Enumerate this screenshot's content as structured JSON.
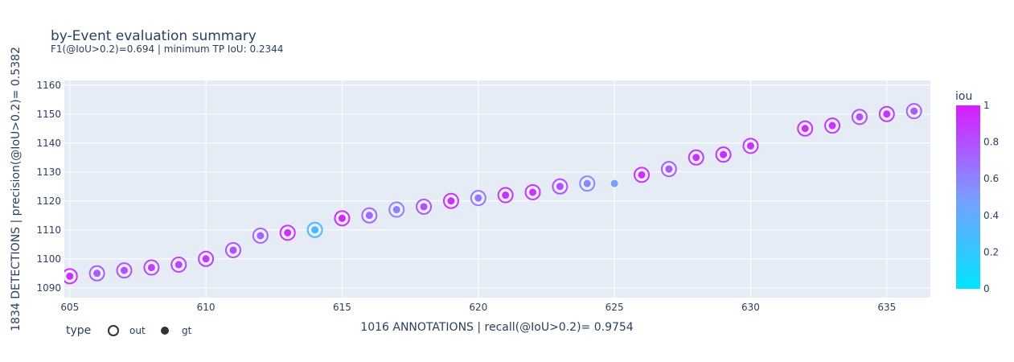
{
  "chart_data": {
    "type": "scatter",
    "title": "by-Event evaluation summary",
    "subtitle": "F1(@IoU>0.2)=0.694 | minimum TP IoU: 0.2344",
    "xlabel": "1016 ANNOTATIONS | recall(@IoU>0.2)= 0.9754",
    "ylabel": "1834 DETECTIONS | precision(@IoU>0.2)= 0.5382",
    "xlim": [
      604.8,
      636.6
    ],
    "ylim": [
      1086.6,
      1161.6
    ],
    "x_ticks": [
      605,
      610,
      615,
      620,
      625,
      630,
      635
    ],
    "y_ticks": [
      1090,
      1100,
      1110,
      1120,
      1130,
      1140,
      1150,
      1160
    ],
    "grid": true,
    "colorbar": {
      "title": "iou",
      "min": 0,
      "max": 1,
      "ticks": [
        0,
        0.2,
        0.4,
        0.6,
        0.8,
        1
      ],
      "tick_labels": [
        "0",
        "0.2",
        "0.4",
        "0.6",
        "0.8",
        "1"
      ],
      "colors": [
        "#00e5ff",
        "#7a9dff",
        "#d81cff"
      ]
    },
    "legend": {
      "title": "type",
      "entries": [
        "out",
        "gt"
      ],
      "placement": "bottom-left"
    },
    "series": [
      {
        "name": "out",
        "symbol": "open-circle",
        "x": [
          605,
          606,
          607,
          608,
          609,
          610,
          611,
          612,
          613,
          614,
          615,
          616,
          617,
          618,
          619,
          620,
          621,
          622,
          623,
          624,
          626,
          627,
          628,
          629,
          630,
          632,
          633,
          634,
          635,
          636
        ],
        "y": [
          1094,
          1095,
          1096,
          1097,
          1098,
          1100,
          1103,
          1108,
          1109,
          1110,
          1114,
          1115,
          1117,
          1118,
          1120,
          1121,
          1122,
          1123,
          1125,
          1126,
          1129,
          1131,
          1135,
          1136,
          1139,
          1145,
          1146,
          1149,
          1150,
          1151
        ],
        "iou": [
          0.92,
          0.75,
          0.8,
          0.85,
          0.85,
          0.88,
          0.8,
          0.72,
          0.92,
          0.3,
          0.95,
          0.7,
          0.62,
          0.78,
          0.92,
          0.65,
          0.9,
          0.9,
          0.8,
          0.58,
          0.92,
          0.75,
          0.9,
          0.92,
          0.9,
          0.92,
          0.9,
          0.8,
          0.9,
          0.75
        ]
      },
      {
        "name": "gt",
        "symbol": "circle",
        "x": [
          605,
          606,
          607,
          608,
          609,
          610,
          611,
          612,
          613,
          614,
          615,
          616,
          617,
          618,
          619,
          620,
          621,
          622,
          623,
          624,
          625,
          626,
          627,
          628,
          629,
          630,
          632,
          633,
          634,
          635,
          636
        ],
        "y": [
          1094,
          1095,
          1096,
          1097,
          1098,
          1100,
          1103,
          1108,
          1109,
          1110,
          1114,
          1115,
          1117,
          1118,
          1120,
          1121,
          1122,
          1123,
          1125,
          1126,
          1126,
          1129,
          1131,
          1135,
          1136,
          1139,
          1145,
          1146,
          1149,
          1150,
          1151
        ],
        "iou": [
          0.92,
          0.75,
          0.8,
          0.85,
          0.85,
          0.88,
          0.8,
          0.72,
          0.92,
          0.3,
          0.95,
          0.7,
          0.62,
          0.78,
          0.92,
          0.65,
          0.9,
          0.9,
          0.8,
          0.58,
          0.5,
          0.92,
          0.75,
          0.9,
          0.92,
          0.9,
          0.92,
          0.9,
          0.8,
          0.9,
          0.75
        ]
      }
    ]
  }
}
